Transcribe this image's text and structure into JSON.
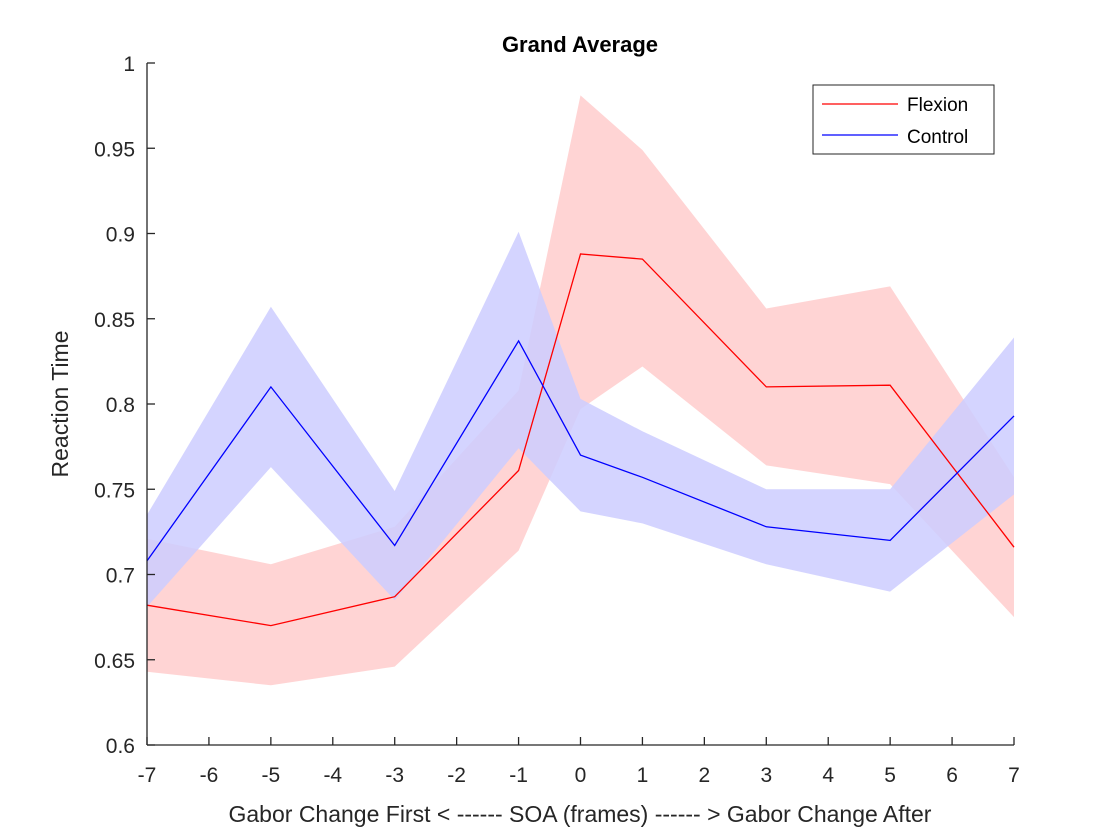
{
  "chart_data": {
    "type": "line",
    "title": "Grand Average",
    "xlabel": "Gabor Change First < ------ SOA (frames) ------ > Gabor Change After",
    "ylabel": "Reaction Time",
    "xlim": [
      -7,
      7
    ],
    "ylim": [
      0.6,
      1.0
    ],
    "xticks": [
      -7,
      -6,
      -5,
      -4,
      -3,
      -2,
      -1,
      0,
      1,
      2,
      3,
      4,
      5,
      6,
      7
    ],
    "yticks": [
      0.6,
      0.65,
      0.7,
      0.75,
      0.8,
      0.85,
      0.9,
      0.95,
      1
    ],
    "xtick_labels": [
      "-7",
      "-6",
      "-5",
      "-4",
      "-3",
      "-2",
      "-1",
      "0",
      "1",
      "2",
      "3",
      "4",
      "5",
      "6",
      "7"
    ],
    "ytick_labels": [
      "0.6",
      "0.65",
      "0.7",
      "0.75",
      "0.8",
      "0.85",
      "0.9",
      "0.95",
      "1"
    ],
    "x_positions": [
      -7,
      -5,
      -3,
      -1,
      0,
      1,
      3,
      5,
      7
    ],
    "legend_position": "top-right",
    "grid": false,
    "series": [
      {
        "name": "Flexion",
        "color": "#ff0000",
        "band_color": "#ffcccc",
        "values": [
          0.682,
          0.67,
          0.687,
          0.761,
          0.888,
          0.885,
          0.81,
          0.811,
          0.716
        ],
        "upper": [
          0.721,
          0.706,
          0.728,
          0.808,
          0.981,
          0.949,
          0.856,
          0.869,
          0.757
        ],
        "lower": [
          0.643,
          0.635,
          0.646,
          0.714,
          0.797,
          0.822,
          0.764,
          0.753,
          0.675
        ]
      },
      {
        "name": "Control",
        "color": "#0000ff",
        "band_color": "#ccccff",
        "values": [
          0.708,
          0.81,
          0.717,
          0.837,
          0.77,
          0.757,
          0.728,
          0.72,
          0.793
        ],
        "upper": [
          0.735,
          0.857,
          0.749,
          0.901,
          0.803,
          0.784,
          0.75,
          0.75,
          0.839
        ],
        "lower": [
          0.681,
          0.763,
          0.685,
          0.774,
          0.737,
          0.73,
          0.706,
          0.69,
          0.747
        ]
      }
    ]
  }
}
